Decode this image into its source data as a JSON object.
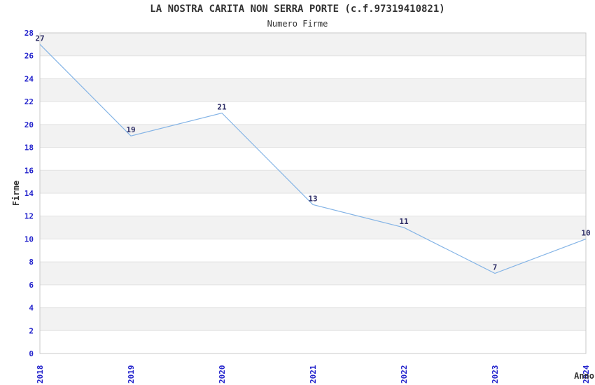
{
  "header": {
    "title": "LA NOSTRA CARITA NON SERRA PORTE (c.f.97319410821)",
    "subtitle": "Numero Firme"
  },
  "chart_data": {
    "type": "line",
    "title": "LA NOSTRA CARITA NON SERRA PORTE (c.f.97319410821)",
    "subtitle": "Numero Firme",
    "xlabel": "Anno",
    "ylabel": "Firme",
    "categories": [
      "2018",
      "2019",
      "2020",
      "2021",
      "2022",
      "2023",
      "2024"
    ],
    "values": [
      27,
      19,
      21,
      13,
      11,
      7,
      10
    ],
    "data_labels": [
      "27",
      "19",
      "21",
      "13",
      "11",
      "7",
      "10"
    ],
    "ylim": [
      0,
      28
    ],
    "ytick_step": 2,
    "yticks": [
      0,
      2,
      4,
      6,
      8,
      10,
      12,
      14,
      16,
      18,
      20,
      22,
      24,
      26,
      28
    ],
    "grid": true,
    "band_pattern": "alternating 2-unit horizontal bands, gray band at top (26-28)",
    "legend": "none",
    "colors": {
      "line": "#84b4e6",
      "tick_label": "#2323cc",
      "data_label": "#2d2d66",
      "axis_text": "#333333",
      "band": "#f2f2f2",
      "gridline": "#e2e2e2",
      "spine": "#c9c9c9",
      "background": "#ffffff"
    }
  }
}
